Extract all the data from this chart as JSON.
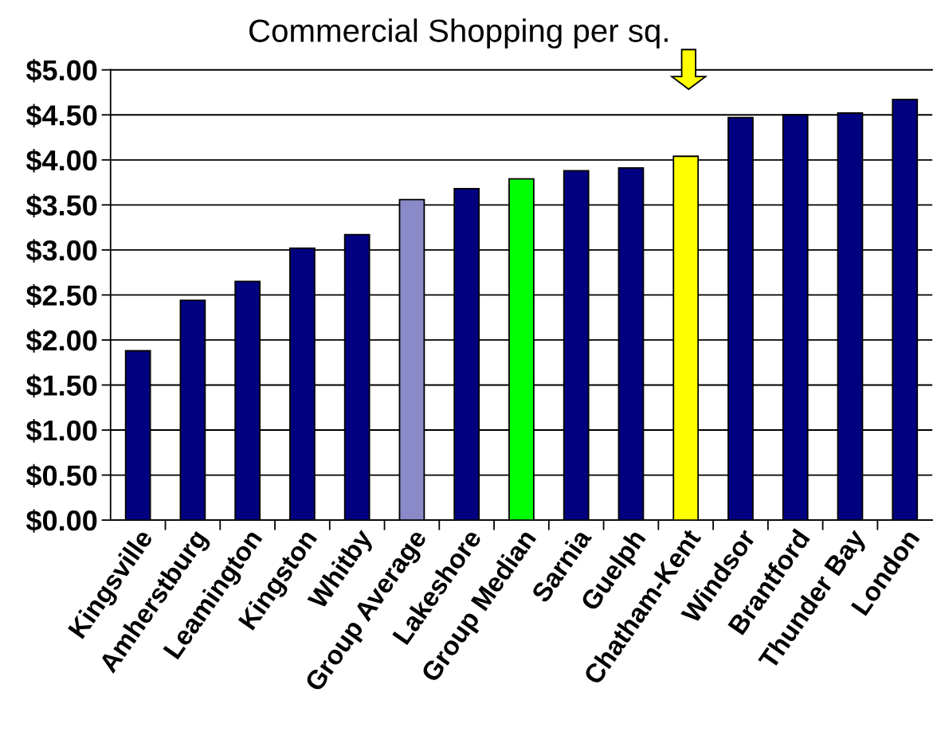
{
  "chart_data": {
    "type": "bar",
    "title": "Commercial Shopping per sq.",
    "categories": [
      "Kingsville",
      "Amherstburg",
      "Leamington",
      "Kingston",
      "Whitby",
      "Group Average",
      "Lakeshore",
      "Group Median",
      "Sarnia",
      "Guelph",
      "Chatham-Kent",
      "Windsor",
      "Brantford",
      "Thunder Bay",
      "London"
    ],
    "values": [
      1.88,
      2.44,
      2.65,
      3.02,
      3.17,
      3.56,
      3.68,
      3.79,
      3.88,
      3.91,
      4.04,
      4.47,
      4.5,
      4.52,
      4.67
    ],
    "colors": [
      "#000080",
      "#000080",
      "#000080",
      "#000080",
      "#000080",
      "#8a8ac8",
      "#000080",
      "#00ff00",
      "#000080",
      "#000080",
      "#ffff00",
      "#000080",
      "#000080",
      "#000080",
      "#000080"
    ],
    "ylim": [
      0,
      5
    ],
    "yticks": [
      {
        "value": 0,
        "label": "$0.00"
      },
      {
        "value": 0.5,
        "label": "$0.50"
      },
      {
        "value": 1,
        "label": "$1.00"
      },
      {
        "value": 1.5,
        "label": "$1.50"
      },
      {
        "value": 2,
        "label": "$2.00"
      },
      {
        "value": 2.5,
        "label": "$2.50"
      },
      {
        "value": 3,
        "label": "$3.00"
      },
      {
        "value": 3.5,
        "label": "$3.50"
      },
      {
        "value": 4,
        "label": "$4.00"
      },
      {
        "value": 4.5,
        "label": "$4.50"
      },
      {
        "value": 5,
        "label": "$5.00"
      }
    ],
    "grid": "y"
  }
}
